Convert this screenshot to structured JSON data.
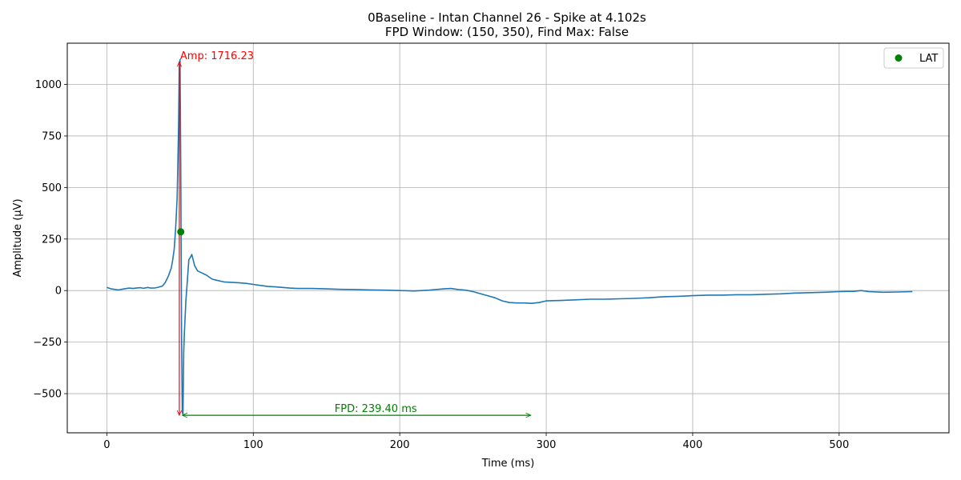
{
  "chart_data": {
    "type": "line",
    "title_line1": "0Baseline - Intan Channel 26 - Spike at 4.102s",
    "title_line2": "FPD Window: (150, 350), Find Max: False",
    "xlabel": "Time (ms)",
    "ylabel": "Amplitude (µV)",
    "xlim": [
      -27,
      575
    ],
    "ylim": [
      -690,
      1200
    ],
    "xticks": [
      0,
      100,
      200,
      300,
      400,
      500
    ],
    "xtick_labels": [
      "0",
      "100",
      "200",
      "300",
      "400",
      "500"
    ],
    "yticks": [
      -500,
      -250,
      0,
      250,
      500,
      750,
      1000
    ],
    "ytick_labels": [
      "−500",
      "−250",
      "0",
      "250",
      "500",
      "750",
      "1000"
    ],
    "grid": true,
    "legend": {
      "position": "top-right",
      "entries": [
        {
          "label": "LAT",
          "marker": "circle",
          "color": "#008000"
        }
      ]
    },
    "series": [
      {
        "color": "#1f77b4",
        "x": [
          0,
          3,
          6,
          8,
          10,
          12,
          15,
          18,
          20,
          23,
          25,
          28,
          30,
          33,
          35,
          38,
          40,
          42,
          44,
          45,
          46,
          47,
          48,
          49,
          49.5,
          50,
          50.5,
          51,
          51.5,
          52,
          52.5,
          53,
          54,
          55,
          56,
          57,
          58,
          60,
          62,
          65,
          68,
          70,
          72,
          75,
          80,
          85,
          90,
          95,
          100,
          105,
          110,
          115,
          120,
          125,
          130,
          140,
          150,
          160,
          170,
          180,
          190,
          200,
          210,
          220,
          230,
          235,
          240,
          245,
          250,
          255,
          260,
          265,
          270,
          275,
          280,
          285,
          290,
          295,
          300,
          310,
          320,
          330,
          340,
          350,
          360,
          370,
          380,
          390,
          400,
          410,
          420,
          430,
          440,
          450,
          460,
          470,
          480,
          490,
          500,
          510,
          515,
          520,
          530,
          540,
          550
        ],
        "y": [
          15,
          8,
          5,
          3,
          6,
          8,
          12,
          10,
          12,
          14,
          11,
          15,
          12,
          13,
          16,
          22,
          40,
          70,
          110,
          150,
          200,
          300,
          450,
          800,
          1100,
          1120,
          600,
          -200,
          -590,
          -600,
          -300,
          -200,
          -50,
          50,
          150,
          160,
          175,
          120,
          95,
          85,
          75,
          65,
          55,
          50,
          42,
          40,
          38,
          35,
          30,
          25,
          20,
          18,
          15,
          12,
          10,
          10,
          8,
          6,
          5,
          3,
          2,
          0,
          -2,
          2,
          8,
          10,
          5,
          2,
          -5,
          -15,
          -25,
          -35,
          -50,
          -58,
          -60,
          -60,
          -62,
          -58,
          -50,
          -48,
          -45,
          -42,
          -42,
          -40,
          -38,
          -35,
          -30,
          -28,
          -25,
          -22,
          -22,
          -20,
          -20,
          -18,
          -16,
          -12,
          -10,
          -8,
          -5,
          -4,
          0,
          -5,
          -8,
          -7,
          -5
        ]
      }
    ],
    "lat_point": {
      "x": 50.5,
      "y": 285
    },
    "amp_annotation": {
      "text": "Amp: 1716.23",
      "x": 49.5,
      "y_top": 1110,
      "y_bottom": -605,
      "color": "#ff0000"
    },
    "fpd_annotation": {
      "text": "FPD: 239.40 ms",
      "x_start": 51.5,
      "x_end": 289.5,
      "y": -605,
      "color": "#008000"
    }
  }
}
